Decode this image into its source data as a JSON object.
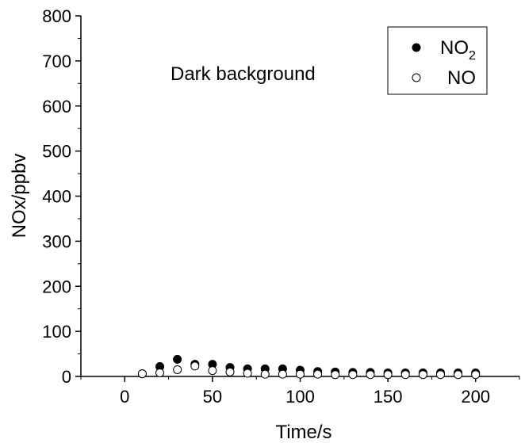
{
  "chart_data": {
    "type": "scatter",
    "title": "",
    "annotation": "Dark background",
    "xlabel": "Time/s",
    "ylabel": "NOx/ppbv",
    "xlim": [
      -25,
      225
    ],
    "ylim": [
      0,
      800
    ],
    "x_ticks": [
      0,
      50,
      100,
      150,
      200
    ],
    "y_ticks": [
      0,
      100,
      200,
      300,
      400,
      500,
      600,
      700,
      800
    ],
    "legend_position": "top-right",
    "series": [
      {
        "name": "NO2",
        "marker": "filled-circle",
        "color": "#000000",
        "x": [
          10,
          20,
          30,
          40,
          50,
          60,
          70,
          80,
          90,
          100,
          110,
          120,
          130,
          140,
          150,
          160,
          170,
          180,
          190,
          200
        ],
        "y": [
          6,
          22,
          38,
          27,
          27,
          20,
          17,
          17,
          17,
          14,
          11,
          10,
          9,
          9,
          8,
          8,
          8,
          8,
          8,
          8
        ]
      },
      {
        "name": "NO",
        "marker": "open-circle",
        "color": "#000000",
        "x": [
          10,
          20,
          30,
          40,
          50,
          60,
          70,
          80,
          90,
          100,
          110,
          120,
          130,
          140,
          150,
          160,
          170,
          180,
          190,
          200
        ],
        "y": [
          6,
          8,
          15,
          23,
          13,
          10,
          7,
          5,
          5,
          5,
          5,
          4,
          4,
          4,
          4,
          4,
          4,
          4,
          4,
          4
        ]
      }
    ],
    "legend": {
      "no2_main": "NO",
      "no2_sub": "2",
      "no_label": "NO"
    }
  }
}
